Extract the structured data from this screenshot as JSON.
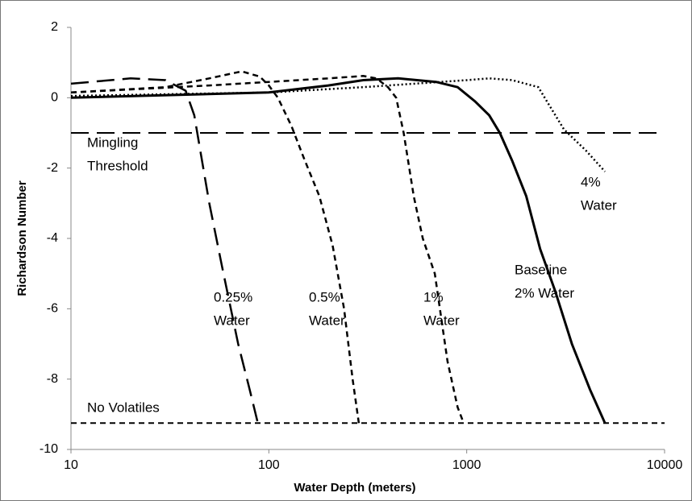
{
  "chart_data": {
    "type": "line",
    "xlabel": "Water Depth (meters)",
    "ylabel": "Richardson Number",
    "xscale": "log",
    "xlim": [
      10,
      10000
    ],
    "xticks": [
      10,
      100,
      1000,
      10000
    ],
    "ylim": [
      -10,
      2
    ],
    "yticks": [
      2,
      0,
      -2,
      -4,
      -6,
      -8,
      -10
    ],
    "grid": false,
    "reference_lines": [
      {
        "label": [
          "Mingling",
          "Threshold"
        ],
        "value": -1,
        "color": "#000000",
        "dash": "long"
      },
      {
        "label": [
          "No Volatiles"
        ],
        "value": -9.25,
        "color": "#000000",
        "dash": "short"
      }
    ],
    "series": [
      {
        "label": [
          "0.25%",
          "Water"
        ],
        "color": "#000000",
        "dash": "long",
        "x": [
          10,
          20,
          30,
          38,
          42,
          45,
          50,
          58,
          70,
          80,
          88
        ],
        "values": [
          0.4,
          0.55,
          0.5,
          0.2,
          -0.5,
          -1.5,
          -3,
          -4.8,
          -7,
          -8.3,
          -9.25
        ]
      },
      {
        "label": [
          "0.5%",
          "Water"
        ],
        "color": "#000000",
        "dash": "short",
        "x": [
          10,
          30,
          50,
          73,
          90,
          100,
          111,
          130,
          150,
          180,
          210,
          240,
          265,
          285
        ],
        "values": [
          0.15,
          0.3,
          0.55,
          0.75,
          0.6,
          0.35,
          0,
          -0.8,
          -1.7,
          -2.8,
          -4.2,
          -6,
          -8,
          -9.25
        ]
      },
      {
        "label": [
          "1%",
          "Water"
        ],
        "color": "#000000",
        "dash": "short",
        "x": [
          10,
          50,
          100,
          200,
          300,
          350,
          400,
          440,
          480,
          540,
          600,
          690,
          800,
          900,
          965
        ],
        "values": [
          0.15,
          0.35,
          0.45,
          0.55,
          0.62,
          0.55,
          0.3,
          0,
          -1,
          -2.8,
          -4,
          -5,
          -7.5,
          -8.8,
          -9.25
        ]
      },
      {
        "label": [
          "Baseline",
          "2% Water"
        ],
        "color": "#000000",
        "dash": "solid",
        "x": [
          10,
          100,
          200,
          300,
          450,
          700,
          900,
          1100,
          1300,
          1470,
          1700,
          2000,
          2350,
          2800,
          3400,
          4200,
          5000
        ],
        "values": [
          0,
          0.15,
          0.35,
          0.5,
          0.55,
          0.45,
          0.3,
          -0.1,
          -0.5,
          -1,
          -1.8,
          -2.8,
          -4.3,
          -5.5,
          -7,
          -8.3,
          -9.25
        ]
      },
      {
        "label": [
          "4%",
          "Water"
        ],
        "color": "#000000",
        "dash": "dotted",
        "x": [
          10,
          100,
          300,
          1000,
          1300,
          1700,
          2300,
          3100,
          4000,
          5000
        ],
        "values": [
          0.05,
          0.15,
          0.3,
          0.5,
          0.55,
          0.5,
          0.3,
          -0.9,
          -1.5,
          -2.1
        ]
      }
    ]
  }
}
